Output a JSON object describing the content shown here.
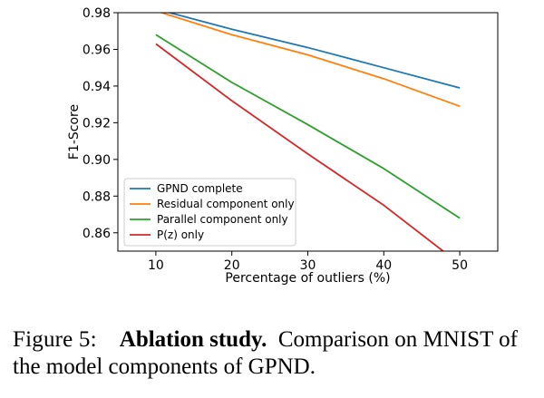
{
  "chart_data": {
    "type": "line",
    "title": "",
    "xlabel": "Percentage of outliers (%)",
    "ylabel": "F1-Score",
    "xlim": [
      5,
      55
    ],
    "ylim": [
      0.85,
      0.98
    ],
    "xticks": [
      10,
      20,
      30,
      40,
      50
    ],
    "yticks": [
      0.86,
      0.88,
      0.9,
      0.92,
      0.94,
      0.96,
      0.98
    ],
    "ytick_labels": [
      "0.86",
      "0.88",
      "0.90",
      "0.92",
      "0.94",
      "0.96",
      "0.98"
    ],
    "xtick_labels": [
      "10",
      "20",
      "30",
      "40",
      "50"
    ],
    "grid": false,
    "legend_position": "lower-left",
    "series": [
      {
        "name": "GPND complete",
        "color": "#1f77b4",
        "x": [
          10,
          20,
          30,
          40,
          50
        ],
        "values": [
          0.982,
          0.971,
          0.961,
          0.95,
          0.939
        ]
      },
      {
        "name": "Residual component only",
        "color": "#ff7f0e",
        "x": [
          10,
          20,
          30,
          40,
          50
        ],
        "values": [
          0.981,
          0.968,
          0.957,
          0.944,
          0.929
        ]
      },
      {
        "name": "Parallel component only",
        "color": "#2ca02c",
        "x": [
          10,
          20,
          30,
          40,
          50
        ],
        "values": [
          0.968,
          0.942,
          0.919,
          0.895,
          0.868
        ]
      },
      {
        "name": "P(z) only",
        "color": "#d62728",
        "x": [
          10,
          20,
          30,
          40,
          50
        ],
        "values": [
          0.963,
          0.932,
          0.903,
          0.875,
          0.843
        ]
      }
    ]
  },
  "caption": {
    "prefix": "Figure 5:",
    "bold": "Ablation study.",
    "text": "Comparison on MNIST of the model components of GPND."
  }
}
